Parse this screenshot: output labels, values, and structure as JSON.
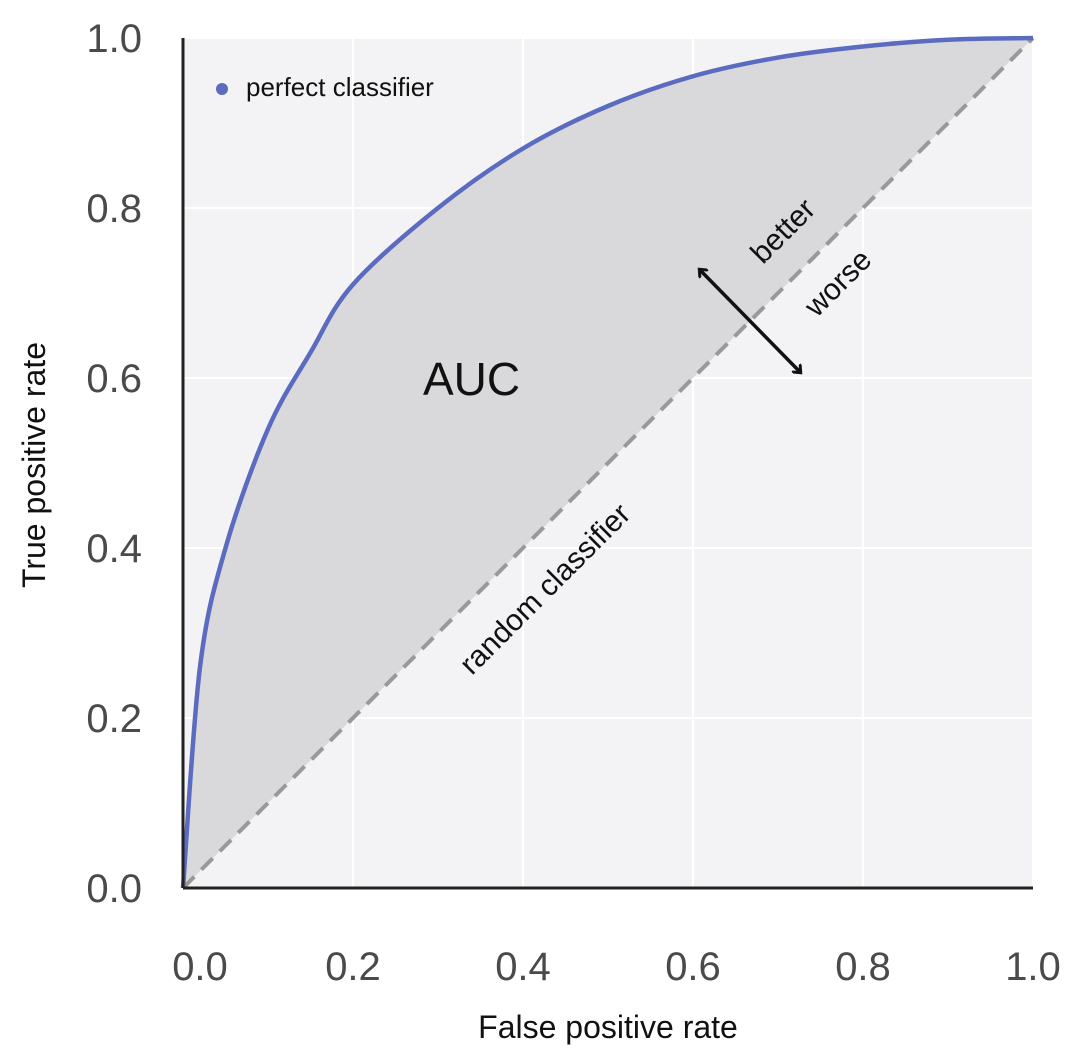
{
  "chart_data": {
    "type": "line",
    "title": "",
    "xlabel": "False positive rate",
    "ylabel": "True positive rate",
    "xlim": [
      0,
      1
    ],
    "ylim": [
      0,
      1
    ],
    "x_ticks": [
      "0.0",
      "0.2",
      "0.4",
      "0.6",
      "0.8",
      "1.0"
    ],
    "y_ticks": [
      "0.0",
      "0.2",
      "0.4",
      "0.6",
      "0.8",
      "1.0"
    ],
    "grid": true,
    "legend_position": "top-left",
    "series": [
      {
        "name": "perfect classifier",
        "color": "#5b6bbf",
        "style": "solid",
        "x": [
          0,
          0.02,
          0.05,
          0.1,
          0.15,
          0.2,
          0.3,
          0.4,
          0.5,
          0.6,
          0.7,
          0.8,
          0.9,
          1.0
        ],
        "y": [
          0,
          0.26,
          0.4,
          0.54,
          0.63,
          0.71,
          0.8,
          0.87,
          0.92,
          0.955,
          0.977,
          0.99,
          0.998,
          1.0
        ]
      },
      {
        "name": "random classifier",
        "color": "#999999",
        "style": "dashed",
        "x": [
          0,
          1
        ],
        "y": [
          0,
          1
        ]
      }
    ],
    "area_between": {
      "label": "AUC",
      "color": "#d9d9dc"
    },
    "annotations": {
      "auc": "AUC",
      "better": "better",
      "worse": "worse",
      "random": "random classifier"
    }
  }
}
